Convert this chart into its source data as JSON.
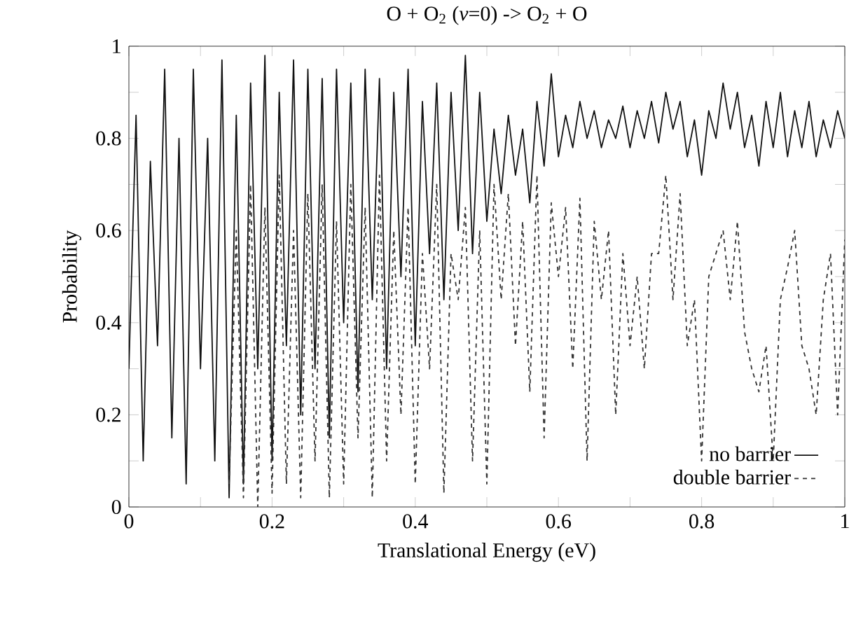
{
  "chart_data": {
    "type": "line",
    "title": "O + O$_{2}$ (*v*=0) -> O$_{2}$ + O",
    "xlabel": "Translational Energy (eV)",
    "ylabel": "Probability",
    "xlim": [
      0,
      1
    ],
    "ylim": [
      0,
      1
    ],
    "xticks": [
      0,
      {
        "value": 0.1,
        "label": null
      },
      0.2,
      {
        "value": 0.3,
        "label": null
      },
      0.4,
      {
        "value": 0.5,
        "label": null
      },
      0.6,
      {
        "value": 0.7,
        "label": null
      },
      0.8,
      {
        "value": 0.9,
        "label": null
      },
      1
    ],
    "yticks": [
      0,
      {
        "value": 0.1,
        "label": null
      },
      0.2,
      {
        "value": 0.3,
        "label": null
      },
      0.4,
      {
        "value": 0.5,
        "label": null
      },
      0.6,
      {
        "value": 0.7,
        "label": null
      },
      0.8,
      {
        "value": 0.9,
        "label": null
      },
      1
    ],
    "legend": "bottom right",
    "series": [
      {
        "name": "no barrier",
        "color": "#111111",
        "line_style": "solid",
        "x": [
          0,
          0.01,
          0.02,
          0.03,
          0.04,
          0.05,
          0.06,
          0.07,
          0.08,
          0.09,
          0.1,
          0.11,
          0.12,
          0.13,
          0.14,
          0.15,
          0.16,
          0.17,
          0.18,
          0.19,
          0.2,
          0.21,
          0.22,
          0.23,
          0.24,
          0.25,
          0.26,
          0.27,
          0.28,
          0.29,
          0.3,
          0.31,
          0.32,
          0.33,
          0.34,
          0.35,
          0.36,
          0.37,
          0.38,
          0.39,
          0.4,
          0.41,
          0.42,
          0.43,
          0.44,
          0.45,
          0.46,
          0.47,
          0.48,
          0.49,
          0.5,
          0.51,
          0.52,
          0.53,
          0.54,
          0.55,
          0.56,
          0.57,
          0.58,
          0.59,
          0.6,
          0.61,
          0.62,
          0.63,
          0.64,
          0.65,
          0.66,
          0.67,
          0.68,
          0.69,
          0.7,
          0.71,
          0.72,
          0.73,
          0.74,
          0.75,
          0.76,
          0.77,
          0.78,
          0.79,
          0.8,
          0.81,
          0.82,
          0.83,
          0.84,
          0.85,
          0.86,
          0.87,
          0.88,
          0.89,
          0.9,
          0.91,
          0.92,
          0.93,
          0.94,
          0.95,
          0.96,
          0.97,
          0.98,
          0.99,
          1
        ],
        "values": [
          0.3,
          0.85,
          0.1,
          0.75,
          0.35,
          0.95,
          0.15,
          0.8,
          0.05,
          0.95,
          0.3,
          0.8,
          0.1,
          0.97,
          0.02,
          0.85,
          0.05,
          0.92,
          0.3,
          0.98,
          0.1,
          0.9,
          0.35,
          0.97,
          0.2,
          0.95,
          0.3,
          0.93,
          0.15,
          0.95,
          0.4,
          0.92,
          0.25,
          0.95,
          0.45,
          0.93,
          0.3,
          0.9,
          0.5,
          0.95,
          0.35,
          0.88,
          0.55,
          0.92,
          0.45,
          0.9,
          0.6,
          0.98,
          0.55,
          0.9,
          0.62,
          0.82,
          0.68,
          0.85,
          0.72,
          0.82,
          0.66,
          0.88,
          0.74,
          0.94,
          0.76,
          0.85,
          0.78,
          0.88,
          0.8,
          0.86,
          0.78,
          0.84,
          0.8,
          0.87,
          0.78,
          0.86,
          0.8,
          0.88,
          0.79,
          0.9,
          0.82,
          0.88,
          0.76,
          0.84,
          0.72,
          0.86,
          0.8,
          0.92,
          0.82,
          0.9,
          0.78,
          0.85,
          0.74,
          0.88,
          0.78,
          0.9,
          0.76,
          0.86,
          0.78,
          0.88,
          0.76,
          0.84,
          0.78,
          0.86,
          0.8
        ]
      },
      {
        "name": "double barrier",
        "color": "#333333",
        "line_style": "dashed",
        "x": [
          0.14,
          0.15,
          0.16,
          0.17,
          0.18,
          0.19,
          0.2,
          0.21,
          0.22,
          0.23,
          0.24,
          0.25,
          0.26,
          0.27,
          0.28,
          0.29,
          0.3,
          0.31,
          0.32,
          0.33,
          0.34,
          0.35,
          0.36,
          0.37,
          0.38,
          0.39,
          0.4,
          0.41,
          0.42,
          0.43,
          0.44,
          0.45,
          0.46,
          0.47,
          0.48,
          0.49,
          0.5,
          0.51,
          0.52,
          0.53,
          0.54,
          0.55,
          0.56,
          0.57,
          0.58,
          0.59,
          0.6,
          0.61,
          0.62,
          0.63,
          0.64,
          0.65,
          0.66,
          0.67,
          0.68,
          0.69,
          0.7,
          0.71,
          0.72,
          0.73,
          0.74,
          0.75,
          0.76,
          0.77,
          0.78,
          0.79,
          0.8,
          0.81,
          0.82,
          0.83,
          0.84,
          0.85,
          0.86,
          0.87,
          0.88,
          0.89,
          0.9,
          0.91,
          0.92,
          0.93,
          0.94,
          0.95,
          0.96,
          0.97,
          0.98,
          0.99,
          1
        ],
        "values": [
          0.05,
          0.6,
          0.02,
          0.7,
          0.0,
          0.65,
          0.03,
          0.72,
          0.05,
          0.6,
          0.02,
          0.68,
          0.1,
          0.7,
          0.02,
          0.62,
          0.05,
          0.7,
          0.15,
          0.65,
          0.02,
          0.72,
          0.1,
          0.6,
          0.2,
          0.65,
          0.05,
          0.55,
          0.3,
          0.7,
          0.03,
          0.55,
          0.45,
          0.65,
          0.1,
          0.6,
          0.05,
          0.7,
          0.45,
          0.68,
          0.35,
          0.62,
          0.25,
          0.72,
          0.15,
          0.66,
          0.5,
          0.65,
          0.3,
          0.67,
          0.1,
          0.62,
          0.45,
          0.6,
          0.2,
          0.55,
          0.35,
          0.5,
          0.3,
          0.55,
          0.55,
          0.72,
          0.45,
          0.68,
          0.35,
          0.45,
          0.1,
          0.5,
          0.55,
          0.6,
          0.45,
          0.62,
          0.38,
          0.3,
          0.25,
          0.35,
          0.1,
          0.45,
          0.52,
          0.6,
          0.35,
          0.3,
          0.2,
          0.45,
          0.55,
          0.2,
          0.58
        ]
      }
    ]
  }
}
